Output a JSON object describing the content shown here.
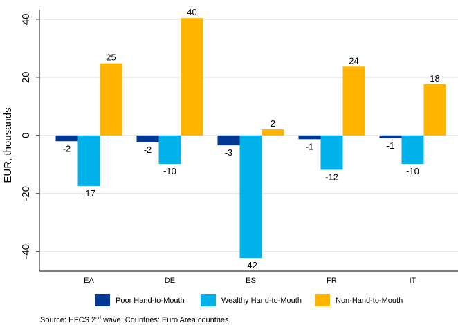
{
  "chart_data": {
    "type": "bar",
    "y_label": "EUR, thousands",
    "categories": [
      "EA",
      "DE",
      "ES",
      "FR",
      "IT"
    ],
    "series": [
      {
        "name": "Poor Hand-to-Mouth",
        "color": "#003894",
        "values": [
          -2.0,
          -2.4,
          -3.4,
          -1.3,
          -1.0
        ],
        "value_labels": [
          "-2",
          "-2",
          "-3",
          "-1",
          "-1"
        ]
      },
      {
        "name": "Wealthy Hand-to-Mouth",
        "color": "#00b1ea",
        "values": [
          -17.4,
          -9.8,
          -42.2,
          -11.8,
          -9.8
        ],
        "value_labels": [
          "-17",
          "-10",
          "-42",
          "-12",
          "-10"
        ]
      },
      {
        "name": "Non-Hand-to-Mouth",
        "color": "#ffb400",
        "values": [
          24.8,
          40.4,
          2.1,
          23.7,
          17.6
        ],
        "value_labels": [
          "25",
          "40",
          "2",
          "24",
          "18"
        ]
      }
    ],
    "ylim": [
      -46.7,
      43.3
    ],
    "yticks": [
      -40,
      -20,
      0,
      20,
      40
    ],
    "grid": true,
    "legend": "bottom",
    "source": [
      "Source: HFCS 2",
      "nd",
      " wave. Countries: Euro Area countries."
    ]
  }
}
